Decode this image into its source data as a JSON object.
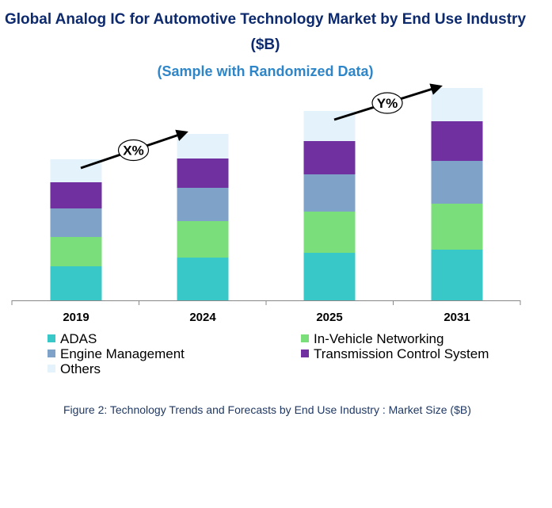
{
  "chart_data": {
    "type": "bar",
    "stacked": true,
    "title_line1": "Global Analog IC for Automotive Technology Market by End Use Industry",
    "title_line2": "($B)",
    "subtitle": "(Sample with Randomized Data)",
    "categories": [
      "2019",
      "2024",
      "2025",
      "2031"
    ],
    "series": [
      {
        "name": "ADAS",
        "color": "#38c8c8",
        "values": [
          43,
          54,
          60,
          64
        ]
      },
      {
        "name": "In-Vehicle Networking",
        "color": "#7adf7a",
        "values": [
          37,
          46,
          52,
          58
        ]
      },
      {
        "name": "Engine Management",
        "color": "#7fa3c8",
        "values": [
          36,
          42,
          47,
          54
        ]
      },
      {
        "name": "Transmission Control System",
        "color": "#7030a0",
        "values": [
          33,
          37,
          42,
          50
        ]
      },
      {
        "name": "Others",
        "color": "#e4f2fb",
        "values": [
          29,
          31,
          38,
          42
        ]
      }
    ],
    "ylim": [
      0,
      270
    ],
    "grid": false,
    "legend_position": "bottom",
    "annotations": [
      {
        "label": "X%",
        "from": "2019",
        "to": "2024"
      },
      {
        "label": "Y%",
        "from": "2025",
        "to": "2031"
      }
    ]
  },
  "caption": "Figure 2: Technology  Trends  and Forecasts by  End Use Industry   : Market Size ($B)"
}
